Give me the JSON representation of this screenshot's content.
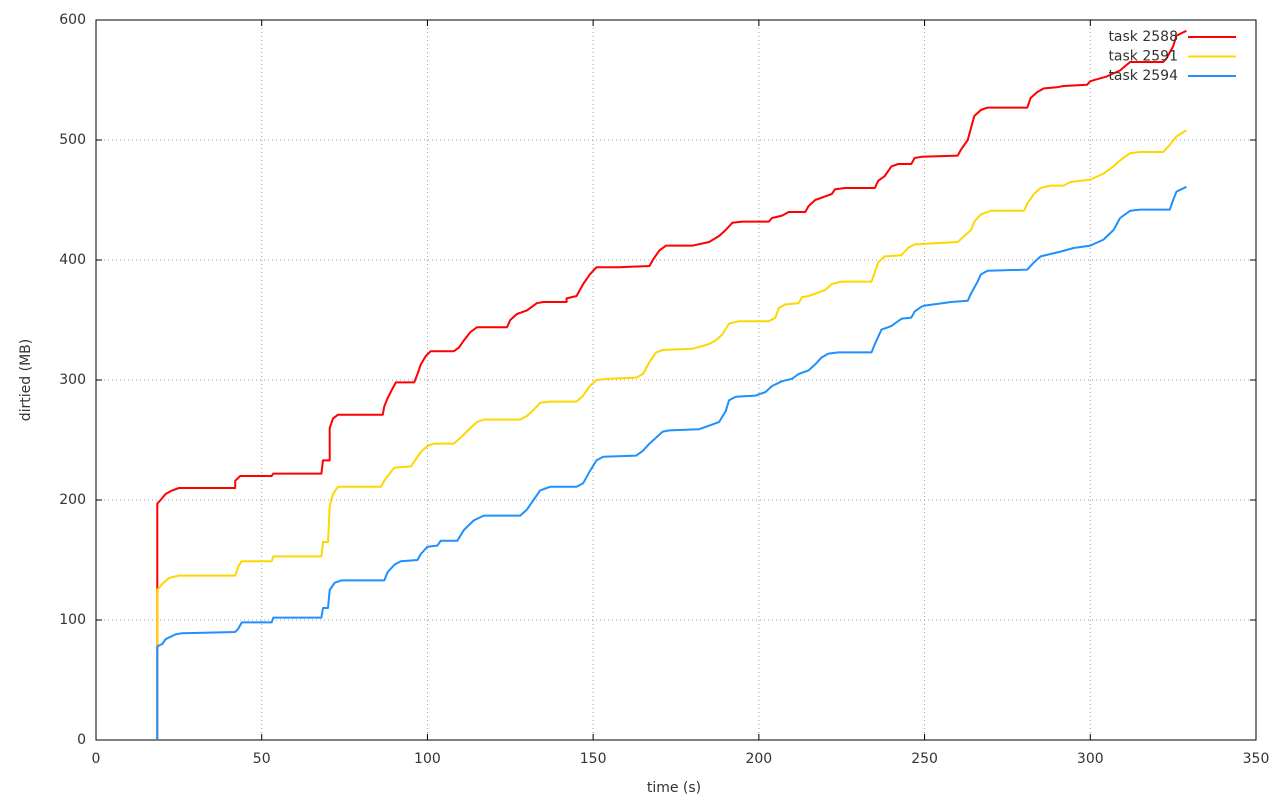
{
  "chart_data": {
    "type": "line",
    "xlabel": "time (s)",
    "ylabel": "dirtied (MB)",
    "xlim": [
      0,
      350
    ],
    "ylim": [
      0,
      600
    ],
    "xticks": [
      0,
      50,
      100,
      150,
      200,
      250,
      300,
      350
    ],
    "yticks": [
      0,
      100,
      200,
      300,
      400,
      500,
      600
    ],
    "grid": true,
    "legend": "top-right",
    "series": [
      {
        "name": "task 2588",
        "color": "#ff0000",
        "x": [
          18.5,
          18.5,
          19.5,
          21,
          23,
          25,
          42,
          42,
          43.5,
          53,
          53.5,
          68,
          68.5,
          70.5,
          70.5,
          71.5,
          73,
          86.5,
          87,
          88,
          89.5,
          90.5,
          96,
          97,
          98,
          99.5,
          101,
          108,
          109.5,
          111,
          113,
          115,
          124,
          125,
          127,
          130,
          133,
          135,
          142,
          142,
          145,
          147,
          149,
          151,
          158,
          167,
          168,
          170,
          172,
          180,
          185,
          188,
          190,
          192,
          195,
          203,
          204,
          207,
          209,
          214,
          215,
          217,
          220,
          222,
          223,
          226,
          235,
          236,
          238,
          240,
          242,
          246,
          247,
          249,
          260,
          261,
          263,
          264,
          265,
          267,
          269,
          281,
          282,
          284,
          286,
          290,
          292,
          299,
          300,
          305,
          309,
          312,
          322,
          323,
          325,
          326,
          329
        ],
        "values": [
          0,
          197,
          200,
          205,
          208,
          210,
          210,
          216,
          220,
          220,
          222,
          222,
          233,
          233,
          260,
          268,
          271,
          271,
          278,
          285,
          293,
          298,
          298,
          305,
          313,
          320,
          324,
          324,
          327,
          333,
          340,
          344,
          344,
          350,
          355,
          358,
          364,
          365,
          365,
          368,
          370,
          380,
          388,
          394,
          394,
          395,
          400,
          408,
          412,
          412,
          415,
          420,
          425,
          431,
          432,
          432,
          435,
          437,
          440,
          440,
          445,
          450,
          453,
          455,
          459,
          460,
          460,
          466,
          470,
          478,
          480,
          480,
          485,
          486,
          487,
          492,
          500,
          510,
          520,
          525,
          527,
          527,
          535,
          540,
          543,
          544,
          545,
          546,
          549,
          553,
          558,
          565,
          565,
          568,
          578,
          587,
          591
        ]
      },
      {
        "name": "task 2591",
        "color": "#ffd700",
        "x": [
          18.5,
          18.5,
          20,
          22,
          25,
          42,
          43,
          44,
          53,
          53.5,
          68,
          68.5,
          70,
          70.5,
          71.5,
          73,
          86,
          87,
          88,
          90,
          95,
          96,
          98,
          100,
          102,
          108,
          110,
          113,
          115,
          117,
          128,
          130,
          132,
          134,
          137,
          145,
          147,
          149,
          151,
          155,
          163,
          165,
          167,
          169,
          171,
          180,
          185,
          187,
          189,
          191,
          194,
          203,
          205,
          206,
          208,
          212,
          213,
          215,
          218,
          220,
          222,
          225,
          234,
          235,
          236,
          238,
          243,
          245,
          247,
          260,
          262,
          264,
          265,
          267,
          270,
          280,
          281,
          283,
          285,
          288,
          292,
          294,
          300,
          304,
          307,
          309,
          312,
          315,
          322,
          324,
          326,
          329
        ],
        "values": [
          0,
          125,
          130,
          135,
          137,
          137,
          145,
          149,
          149,
          153,
          153,
          165,
          165,
          195,
          205,
          211,
          211,
          216,
          220,
          227,
          228,
          232,
          240,
          245,
          247,
          247,
          252,
          260,
          265,
          267,
          267,
          270,
          275,
          281,
          282,
          282,
          287,
          295,
          300,
          301,
          302,
          305,
          315,
          323,
          325,
          326,
          330,
          333,
          338,
          347,
          349,
          349,
          352,
          360,
          363,
          364,
          369,
          370,
          373,
          375,
          380,
          382,
          382,
          390,
          398,
          403,
          404,
          410,
          413,
          415,
          420,
          425,
          432,
          438,
          441,
          441,
          447,
          455,
          460,
          462,
          462,
          465,
          467,
          472,
          478,
          483,
          489,
          490,
          490,
          496,
          503,
          508
        ]
      },
      {
        "name": "task 2594",
        "color": "#1e90ff",
        "x": [
          18.5,
          18.5,
          20,
          21,
          24,
          26,
          42,
          43,
          44,
          53,
          53.5,
          68,
          68.5,
          70,
          70.5,
          72,
          74,
          87,
          88,
          90,
          92,
          97,
          98,
          100,
          103,
          104,
          109,
          111,
          114,
          117,
          128,
          130,
          132,
          134,
          137,
          145,
          147,
          149,
          151,
          153,
          163,
          165,
          167,
          169,
          171,
          173,
          182,
          186,
          188,
          190,
          191,
          193,
          199,
          202,
          204,
          207,
          210,
          212,
          215,
          217,
          219,
          221,
          224,
          234,
          235,
          237,
          240,
          243,
          246,
          247,
          249,
          250,
          258,
          263,
          264,
          266,
          267,
          269,
          281,
          283,
          285,
          288,
          291,
          295,
          300,
          304,
          307,
          309,
          312,
          315,
          324,
          325,
          326,
          329
        ],
        "values": [
          0,
          78,
          80,
          84,
          88,
          89,
          90,
          93,
          98,
          98,
          102,
          102,
          110,
          110,
          125,
          131,
          133,
          133,
          140,
          146,
          149,
          150,
          155,
          161,
          162,
          166,
          166,
          175,
          183,
          187,
          187,
          192,
          200,
          208,
          211,
          211,
          214,
          224,
          233,
          236,
          237,
          241,
          247,
          252,
          257,
          258,
          259,
          263,
          265,
          274,
          283,
          286,
          287,
          290,
          295,
          299,
          301,
          305,
          308,
          313,
          319,
          322,
          323,
          323,
          330,
          342,
          345,
          351,
          352,
          357,
          361,
          362,
          365,
          366,
          372,
          382,
          388,
          391,
          392,
          398,
          403,
          405,
          407,
          410,
          412,
          417,
          425,
          435,
          441,
          442,
          442,
          450,
          457,
          461
        ]
      }
    ]
  }
}
